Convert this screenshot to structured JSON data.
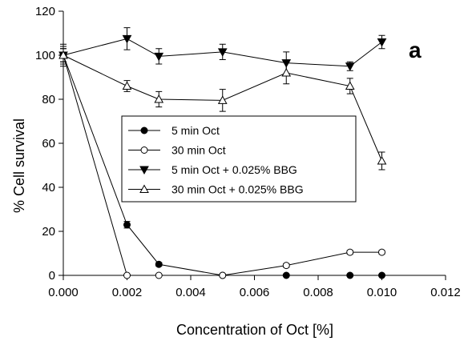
{
  "chart_data": {
    "type": "line",
    "panel_label": "a",
    "xlabel": "Concentration of Oct [%]",
    "ylabel": "% Cell survival",
    "xlim": [
      0,
      0.012
    ],
    "ylim": [
      0,
      120
    ],
    "x_ticks": [
      "0.000",
      "0.002",
      "0.004",
      "0.006",
      "0.008",
      "0.010",
      "0.012"
    ],
    "y_ticks": [
      "0",
      "20",
      "40",
      "60",
      "80",
      "100",
      "120"
    ],
    "grid": false,
    "legend_position": "center-left",
    "series": [
      {
        "name": "5 min Oct",
        "marker": "filled-circle",
        "x": [
          0,
          0.002,
          0.003,
          0.005,
          0.007,
          0.009,
          0.01
        ],
        "y": [
          100,
          23,
          5,
          0,
          0,
          0,
          0
        ],
        "err": [
          3,
          1.5,
          0.8,
          0.3,
          0.3,
          0.3,
          0.3
        ]
      },
      {
        "name": "30 min Oct",
        "marker": "open-circle",
        "x": [
          0,
          0.002,
          0.003,
          0.005,
          0.007,
          0.009,
          0.01
        ],
        "y": [
          100,
          0,
          0,
          0,
          4.5,
          10.5,
          10.5
        ],
        "err": [
          3,
          0.3,
          0.3,
          0.3,
          0.8,
          0.8,
          0.8
        ]
      },
      {
        "name": "5 min Oct + 0.025% BBG",
        "marker": "filled-triangle-down",
        "x": [
          0,
          0.002,
          0.003,
          0.005,
          0.007,
          0.009,
          0.01
        ],
        "y": [
          100,
          107.5,
          99.5,
          101.5,
          96.5,
          95,
          106
        ],
        "err": [
          5,
          5,
          3.5,
          3.5,
          5,
          2,
          3
        ]
      },
      {
        "name": "30 min Oct + 0.025% BBG",
        "marker": "open-triangle-up",
        "x": [
          0,
          0.002,
          0.003,
          0.005,
          0.007,
          0.009,
          0.01
        ],
        "y": [
          100,
          86,
          80,
          79.5,
          92,
          86,
          52
        ],
        "err": [
          4,
          2.5,
          3.5,
          5,
          5,
          3.5,
          4
        ]
      }
    ]
  }
}
